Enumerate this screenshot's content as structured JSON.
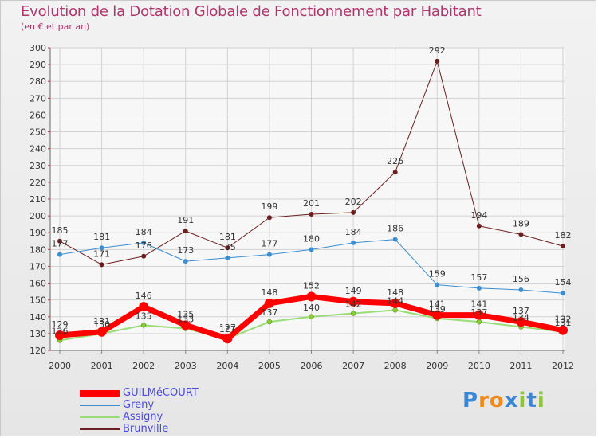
{
  "header": {
    "title": "Evolution de la Dotation Globale de Fonctionnement par Habitant",
    "subtitle": "(en € et par an)"
  },
  "logo": {
    "text": "Proxiti",
    "letters": [
      "P",
      "r",
      "o",
      "x",
      "i",
      "t",
      "i"
    ]
  },
  "chart_data": {
    "type": "line",
    "x": [
      "2000",
      "2001",
      "2002",
      "2003",
      "2004",
      "2005",
      "2006",
      "2007",
      "2008",
      "2009",
      "2010",
      "2011",
      "2012"
    ],
    "ylim": [
      120,
      300
    ],
    "yticks": [
      120,
      130,
      140,
      150,
      160,
      170,
      180,
      190,
      200,
      210,
      220,
      230,
      240,
      250,
      260,
      270,
      280,
      290,
      300
    ],
    "grid": true,
    "legend_position": "bottom-left",
    "series": [
      {
        "name": "GUILMéCOURT",
        "color": "#ff0000",
        "marker": "#ff0000",
        "width": 7,
        "values": [
          129,
          131,
          146,
          135,
          127,
          148,
          152,
          149,
          148,
          141,
          141,
          137,
          132
        ]
      },
      {
        "name": "Greny",
        "color": "#3d8ecf",
        "marker": "#3d8ecf",
        "width": 1,
        "values": [
          177,
          181,
          184,
          173,
          175,
          177,
          180,
          184,
          186,
          159,
          157,
          156,
          154
        ]
      },
      {
        "name": "Assigny",
        "color": "#99dd77",
        "marker": "#88cc33",
        "width": 2,
        "values": [
          126,
          130,
          135,
          133,
          127,
          137,
          140,
          142,
          144,
          139,
          137,
          134,
          131
        ]
      },
      {
        "name": "Brunville",
        "color": "#6b1f1f",
        "marker": "#6b1f1f",
        "width": 1,
        "values": [
          185,
          171,
          176,
          191,
          181,
          199,
          201,
          202,
          226,
          292,
          194,
          189,
          182
        ]
      }
    ]
  }
}
